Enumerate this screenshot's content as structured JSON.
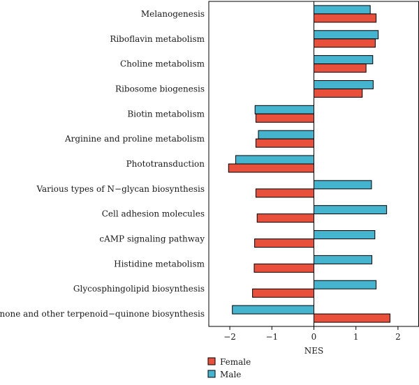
{
  "chart_data": {
    "type": "bar",
    "orientation": "horizontal",
    "categories": [
      "Melanogenesis",
      "Riboflavin metabolism",
      "Choline metabolism",
      "Ribosome biogenesis",
      "Biotin metabolism",
      "Arginine and proline metabolism",
      "Phototransduction",
      "Various types of N−glycan biosynthesis",
      "Cell adhesion molecules",
      "cAMP signaling pathway",
      "Histidine metabolism",
      "Glycosphingolipid biosynthesis",
      "Ubiquinone and other terpenoid−quinone biosynthesis"
    ],
    "series": [
      {
        "name": "Female",
        "color": "#e8503c",
        "values": [
          1.48,
          1.46,
          1.24,
          1.15,
          -1.38,
          -1.38,
          -2.03,
          -1.38,
          -1.35,
          -1.41,
          -1.42,
          -1.46,
          1.81
        ]
      },
      {
        "name": "Male",
        "color": "#45b4cf",
        "values": [
          1.34,
          1.53,
          1.4,
          1.41,
          -1.4,
          -1.32,
          -1.86,
          1.37,
          1.73,
          1.45,
          1.38,
          1.48,
          -1.94
        ]
      }
    ],
    "xlabel": "NES",
    "xlim": [
      -2.5,
      2.5
    ],
    "xticks": [
      -2,
      -1,
      0,
      1,
      2
    ],
    "tick_labels": [
      "−2",
      "−1",
      "0",
      "1",
      "2"
    ],
    "zero_line": true,
    "grid": false,
    "legend_position": "bottom-left"
  }
}
